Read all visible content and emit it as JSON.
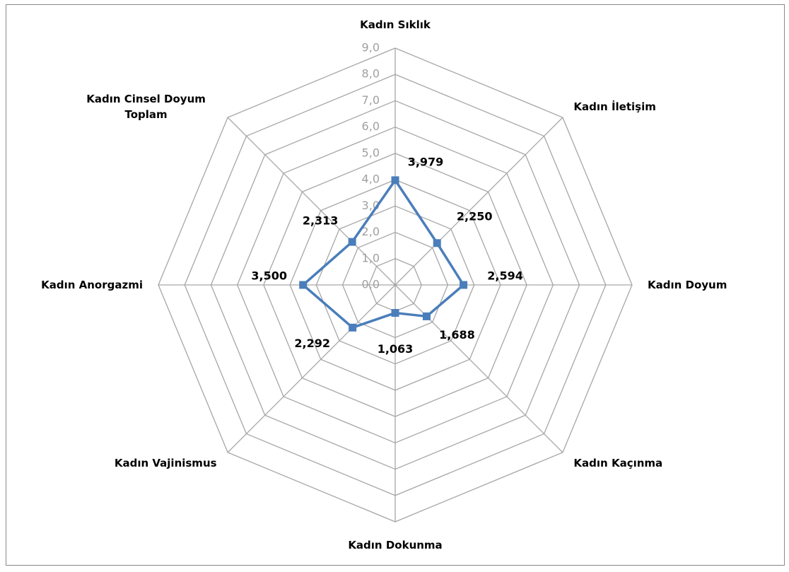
{
  "chart_data": {
    "type": "radar",
    "categories": [
      "Kadın Sıklık",
      "Kadın İletişim",
      "Kadın Doyum",
      "Kadın Kaçınma",
      "Kadın Dokunma",
      "Kadın Vajinismus",
      "Kadın Anorgazmi",
      "Kadın Cinsel Doyum Toplam"
    ],
    "series": [
      {
        "color": "#4a7ebb",
        "values": [
          3.979,
          2.25,
          2.594,
          1.688,
          1.063,
          2.292,
          3.5,
          2.313
        ],
        "value_labels": [
          "3,979",
          "2,250",
          "2,594",
          "1,688",
          "1,063",
          "2,292",
          "3,500",
          "2,313"
        ]
      }
    ],
    "ylim": [
      0,
      9
    ],
    "yticks": [
      {
        "value": 0,
        "label": "0,0"
      },
      {
        "value": 1,
        "label": "1,0"
      },
      {
        "value": 2,
        "label": "2,0"
      },
      {
        "value": 3,
        "label": "3,0"
      },
      {
        "value": 4,
        "label": "4,0"
      },
      {
        "value": 5,
        "label": "5,0"
      },
      {
        "value": 6,
        "label": "6,0"
      },
      {
        "value": 7,
        "label": "7,0"
      },
      {
        "value": 8,
        "label": "8,0"
      },
      {
        "value": 9,
        "label": "9,0"
      }
    ],
    "grid": true
  }
}
